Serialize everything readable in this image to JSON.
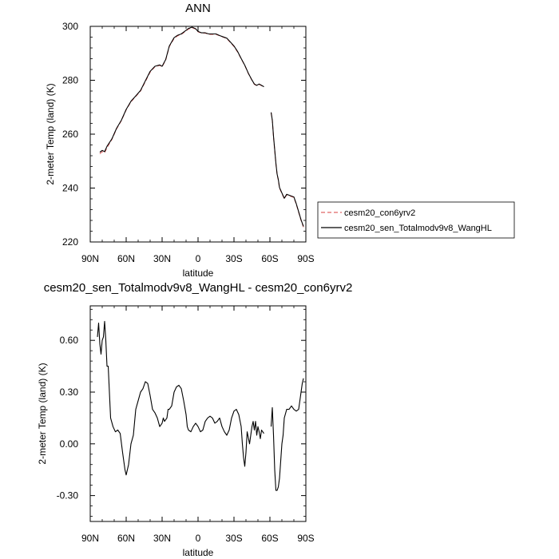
{
  "chart_data": [
    {
      "type": "line",
      "title": "ANN",
      "xlabel": "latitude",
      "ylabel": "2-meter Temp (land) (K)",
      "xlim": [
        90,
        -90
      ],
      "ylim": [
        220,
        300
      ],
      "x_ticks": [
        90,
        60,
        30,
        0,
        -30,
        -60,
        -90
      ],
      "x_tick_labels": [
        "90N",
        "60N",
        "30N",
        "0",
        "30S",
        "60S",
        "90S"
      ],
      "y_ticks": [
        220,
        240,
        260,
        280,
        300
      ],
      "y_tick_labels": [
        "220",
        "240",
        "260",
        "280",
        "300"
      ],
      "legend": {
        "placement": "right",
        "entries": [
          {
            "label": "cesm20_con6yrv2",
            "color": "#e06666",
            "dash": "dashed"
          },
          {
            "label": "cesm20_sen_Totalmodv9v8_WangHL",
            "color": "#000000",
            "dash": "solid"
          }
        ]
      },
      "series": [
        {
          "name": "cesm20_con6yrv2",
          "color": "#e06666",
          "segments": [
            [
              [
                82,
                252.7
              ],
              [
                80,
                253.5
              ],
              [
                78,
                253.1
              ],
              [
                76,
                255.0
              ],
              [
                72,
                258.0
              ],
              [
                68,
                262.0
              ],
              [
                64,
                265.0
              ],
              [
                60,
                269.0
              ],
              [
                56,
                272.0
              ],
              [
                52,
                274.0
              ],
              [
                48,
                276.0
              ],
              [
                44,
                279.5
              ],
              [
                40,
                283.0
              ],
              [
                36,
                285.0
              ],
              [
                32,
                285.5
              ],
              [
                30,
                285.0
              ],
              [
                27,
                287.5
              ],
              [
                24,
                292.5
              ],
              [
                20,
                295.5
              ],
              [
                17,
                296.5
              ],
              [
                14,
                297.0
              ],
              [
                11,
                298.0
              ],
              [
                8,
                299.0
              ],
              [
                5,
                299.5
              ],
              [
                2,
                299.0
              ],
              [
                0,
                298.0
              ],
              [
                -3,
                297.5
              ],
              [
                -6,
                297.5
              ],
              [
                -9,
                297.0
              ],
              [
                -12,
                297.0
              ],
              [
                -15,
                297.0
              ],
              [
                -18,
                296.5
              ],
              [
                -21,
                296.0
              ],
              [
                -24,
                295.5
              ],
              [
                -27,
                294.0
              ],
              [
                -30,
                292.5
              ],
              [
                -33,
                290.5
              ],
              [
                -36,
                288.0
              ],
              [
                -39,
                285.5
              ],
              [
                -42,
                282.5
              ],
              [
                -45,
                280.0
              ],
              [
                -47,
                278.5
              ],
              [
                -49,
                278.0
              ],
              [
                -51,
                278.5
              ],
              [
                -53,
                278.0
              ],
              [
                -55,
                277.5
              ]
            ],
            [
              [
                -61,
                268.0
              ],
              [
                -62,
                265.0
              ],
              [
                -63,
                259.0
              ],
              [
                -64,
                254.0
              ],
              [
                -65,
                249.0
              ],
              [
                -66,
                245.0
              ],
              [
                -67,
                243.0
              ],
              [
                -68,
                240.0
              ],
              [
                -70,
                238.0
              ],
              [
                -72,
                236.0
              ],
              [
                -74,
                237.5
              ],
              [
                -77,
                237.0
              ],
              [
                -80,
                236.5
              ],
              [
                -82,
                234.0
              ],
              [
                -84,
                231.0
              ],
              [
                -86,
                228.0
              ],
              [
                -88,
                225.5
              ]
            ]
          ]
        },
        {
          "name": "cesm20_sen_Totalmodv9v8_WangHL",
          "color": "#000000",
          "segments": [
            [
              [
                82,
                253.3
              ],
              [
                80,
                254.0
              ],
              [
                78,
                253.5
              ],
              [
                76,
                255.5
              ],
              [
                72,
                258.2
              ],
              [
                68,
                262.2
              ],
              [
                64,
                265.2
              ],
              [
                60,
                269.2
              ],
              [
                56,
                272.2
              ],
              [
                52,
                274.2
              ],
              [
                48,
                276.2
              ],
              [
                44,
                279.8
              ],
              [
                40,
                283.3
              ],
              [
                36,
                285.2
              ],
              [
                32,
                285.7
              ],
              [
                30,
                285.2
              ],
              [
                27,
                287.7
              ],
              [
                24,
                292.7
              ],
              [
                20,
                295.8
              ],
              [
                17,
                296.7
              ],
              [
                14,
                297.2
              ],
              [
                11,
                298.2
              ],
              [
                8,
                299.2
              ],
              [
                5,
                299.7
              ],
              [
                2,
                299.1
              ],
              [
                0,
                298.1
              ],
              [
                -3,
                297.6
              ],
              [
                -6,
                297.6
              ],
              [
                -9,
                297.2
              ],
              [
                -12,
                297.2
              ],
              [
                -15,
                297.2
              ],
              [
                -18,
                296.6
              ],
              [
                -21,
                296.1
              ],
              [
                -24,
                295.6
              ],
              [
                -27,
                294.2
              ],
              [
                -30,
                292.7
              ],
              [
                -33,
                290.7
              ],
              [
                -36,
                288.1
              ],
              [
                -39,
                285.6
              ],
              [
                -42,
                282.6
              ],
              [
                -45,
                280.1
              ],
              [
                -47,
                278.6
              ],
              [
                -49,
                278.1
              ],
              [
                -51,
                278.6
              ],
              [
                -53,
                278.1
              ],
              [
                -55,
                277.6
              ]
            ],
            [
              [
                -61,
                268.1
              ],
              [
                -62,
                265.2
              ],
              [
                -63,
                259.2
              ],
              [
                -64,
                254.2
              ],
              [
                -65,
                249.2
              ],
              [
                -66,
                245.2
              ],
              [
                -67,
                243.2
              ],
              [
                -68,
                240.2
              ],
              [
                -70,
                238.2
              ],
              [
                -72,
                236.2
              ],
              [
                -74,
                237.7
              ],
              [
                -77,
                237.2
              ],
              [
                -80,
                236.7
              ],
              [
                -82,
                234.2
              ],
              [
                -84,
                231.2
              ],
              [
                -86,
                228.2
              ],
              [
                -88,
                225.8
              ]
            ]
          ]
        }
      ]
    },
    {
      "type": "line",
      "title": "cesm20_sen_Totalmodv9v8_WangHL - cesm20_con6yrv2",
      "xlabel": "latitude",
      "ylabel": "2-meter Temp (land) (K)",
      "xlim": [
        90,
        -90
      ],
      "ylim": [
        -0.45,
        0.8
      ],
      "x_ticks": [
        90,
        60,
        30,
        0,
        -30,
        -60,
        -90
      ],
      "x_tick_labels": [
        "90N",
        "60N",
        "30N",
        "0",
        "30S",
        "60S",
        "90S"
      ],
      "y_ticks": [
        -0.3,
        0.0,
        0.3,
        0.6
      ],
      "y_tick_labels": [
        "-0.30",
        "0.00",
        "0.30",
        "0.60"
      ],
      "series": [
        {
          "color": "#000000",
          "segments": [
            [
              [
                84,
                0.62
              ],
              [
                83,
                0.7
              ],
              [
                82,
                0.58
              ],
              [
                81,
                0.52
              ],
              [
                80,
                0.6
              ],
              [
                79,
                0.62
              ],
              [
                78,
                0.71
              ],
              [
                77,
                0.6
              ],
              [
                76,
                0.45
              ],
              [
                75,
                0.45
              ],
              [
                74,
                0.3
              ],
              [
                73,
                0.15
              ],
              [
                71,
                0.1
              ],
              [
                69,
                0.07
              ],
              [
                67,
                0.08
              ],
              [
                65,
                0.06
              ],
              [
                63,
                -0.05
              ],
              [
                61,
                -0.15
              ],
              [
                60,
                -0.18
              ],
              [
                58,
                -0.12
              ],
              [
                56,
                0.0
              ],
              [
                54,
                0.05
              ],
              [
                52,
                0.2
              ],
              [
                50,
                0.25
              ],
              [
                48,
                0.3
              ],
              [
                46,
                0.32
              ],
              [
                44,
                0.36
              ],
              [
                42,
                0.35
              ],
              [
                40,
                0.28
              ],
              [
                38,
                0.2
              ],
              [
                36,
                0.18
              ],
              [
                34,
                0.15
              ],
              [
                32,
                0.1
              ],
              [
                30,
                0.12
              ],
              [
                29,
                0.15
              ],
              [
                28,
                0.13
              ],
              [
                26,
                0.15
              ],
              [
                25,
                0.2
              ],
              [
                24,
                0.2
              ],
              [
                22,
                0.22
              ],
              [
                20,
                0.3
              ],
              [
                18,
                0.33
              ],
              [
                16,
                0.34
              ],
              [
                14,
                0.32
              ],
              [
                12,
                0.25
              ],
              [
                10,
                0.17
              ],
              [
                9,
                0.1
              ],
              [
                8,
                0.08
              ],
              [
                6,
                0.07
              ],
              [
                4,
                0.1
              ],
              [
                2,
                0.12
              ],
              [
                0,
                0.1
              ],
              [
                -2,
                0.07
              ],
              [
                -4,
                0.08
              ],
              [
                -6,
                0.13
              ],
              [
                -8,
                0.15
              ],
              [
                -10,
                0.16
              ],
              [
                -12,
                0.15
              ],
              [
                -14,
                0.12
              ],
              [
                -16,
                0.13
              ],
              [
                -18,
                0.15
              ],
              [
                -20,
                0.1
              ],
              [
                -22,
                0.07
              ],
              [
                -24,
                0.05
              ],
              [
                -26,
                0.08
              ],
              [
                -28,
                0.15
              ],
              [
                -30,
                0.19
              ],
              [
                -32,
                0.2
              ],
              [
                -34,
                0.17
              ],
              [
                -36,
                0.1
              ],
              [
                -37,
                0.0
              ],
              [
                -38,
                -0.08
              ],
              [
                -39,
                -0.13
              ],
              [
                -40,
                -0.05
              ],
              [
                -41,
                0.07
              ],
              [
                -43,
                0.0
              ],
              [
                -44,
                0.05
              ],
              [
                -45,
                0.1
              ],
              [
                -46,
                0.13
              ],
              [
                -47,
                0.08
              ],
              [
                -48,
                0.13
              ],
              [
                -49,
                0.05
              ],
              [
                -50,
                0.1
              ],
              [
                -51,
                0.07
              ],
              [
                -52,
                0.03
              ],
              [
                -53,
                0.08
              ],
              [
                -54,
                0.07
              ],
              [
                -55,
                0.06
              ]
            ],
            [
              [
                -61,
                0.1
              ],
              [
                -62,
                0.21
              ],
              [
                -63,
                0.05
              ],
              [
                -64,
                -0.15
              ],
              [
                -65,
                -0.27
              ],
              [
                -66,
                -0.27
              ],
              [
                -67,
                -0.25
              ],
              [
                -68,
                -0.2
              ],
              [
                -69,
                -0.1
              ],
              [
                -70,
                0.0
              ],
              [
                -71,
                0.05
              ],
              [
                -72,
                0.15
              ],
              [
                -74,
                0.2
              ],
              [
                -76,
                0.2
              ],
              [
                -78,
                0.22
              ],
              [
                -80,
                0.2
              ],
              [
                -82,
                0.19
              ],
              [
                -84,
                0.2
              ],
              [
                -85,
                0.25
              ],
              [
                -86,
                0.3
              ],
              [
                -87,
                0.35
              ],
              [
                -88,
                0.38
              ]
            ]
          ]
        }
      ]
    }
  ]
}
